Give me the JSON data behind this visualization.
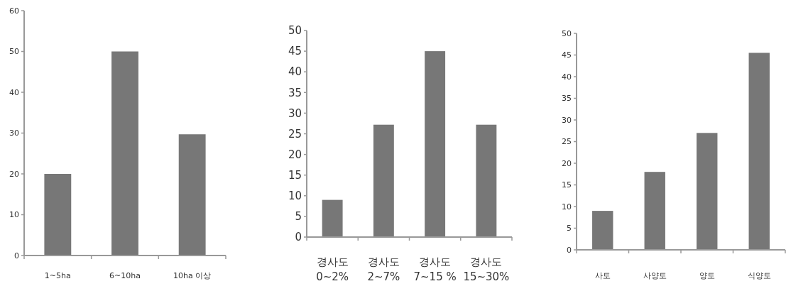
{
  "chart_data": [
    {
      "type": "bar",
      "categories": [
        "1~5ha",
        "6~10ha",
        "10ha 이상"
      ],
      "values": [
        20,
        50,
        29.7
      ],
      "color": "#777777",
      "ylim": [
        0,
        60
      ],
      "yticks": [
        0,
        10,
        20,
        30,
        40,
        50,
        60
      ]
    },
    {
      "type": "bar",
      "categories": [
        "경사도\n0~2%",
        "경사도\n2~7%",
        "경사도\n7~15 %",
        "경사도\n15~30%"
      ],
      "values": [
        9,
        27.2,
        45,
        27.2
      ],
      "color": "#777777",
      "ylim": [
        0,
        50
      ],
      "yticks": [
        0,
        5,
        10,
        15,
        20,
        25,
        30,
        35,
        40,
        45,
        50
      ]
    },
    {
      "type": "bar",
      "categories": [
        "사토",
        "사양토",
        "양토",
        "식양토"
      ],
      "values": [
        9,
        18,
        27,
        45.5
      ],
      "color": "#777777",
      "ylim": [
        0,
        50
      ],
      "yticks": [
        0,
        5,
        10,
        15,
        20,
        25,
        30,
        35,
        40,
        45,
        50
      ]
    }
  ]
}
